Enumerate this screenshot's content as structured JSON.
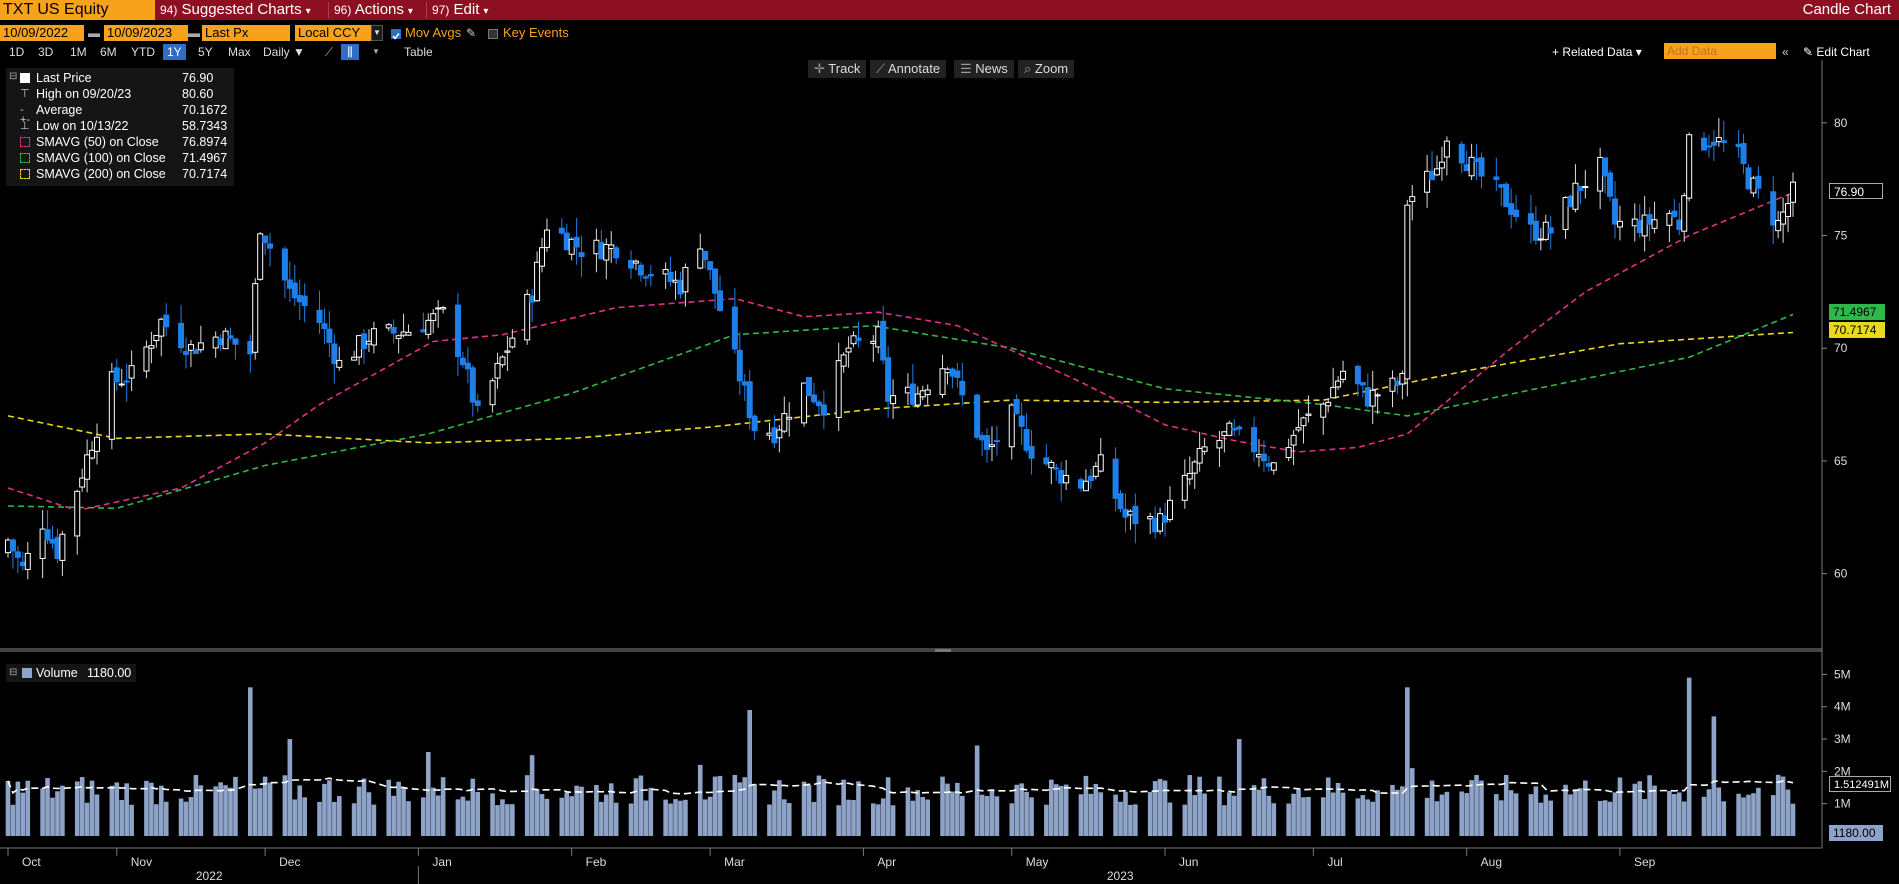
{
  "header": {
    "security": "TXT US Equity",
    "menus": [
      {
        "num": "94)",
        "label": "Suggested Charts"
      },
      {
        "num": "96)",
        "label": "Actions"
      },
      {
        "num": "97)",
        "label": "Edit"
      }
    ],
    "view_title": "Candle Chart"
  },
  "controls": {
    "start_date": "10/09/2022",
    "end_date": "10/09/2023",
    "field": "Last Px",
    "currency": "Local CCY",
    "mov_avgs": "Mov Avgs",
    "key_events": "Key Events",
    "periods": [
      "1D",
      "3D",
      "1M",
      "6M",
      "YTD",
      "1Y",
      "5Y",
      "Max"
    ],
    "selected_period": "1Y",
    "frequency": "Daily",
    "table": "Table",
    "related_data": "+ Related Data",
    "add_data_placeholder": "Add Data",
    "edit_chart": "Edit Chart",
    "tools": [
      "Track",
      "Annotate",
      "News",
      "Zoom"
    ]
  },
  "legend": [
    {
      "label": "Last Price",
      "value": "76.90",
      "color": "#ffffff"
    },
    {
      "label": "High on 09/20/23",
      "value": "80.60",
      "color": "#cccccc"
    },
    {
      "label": "Average",
      "value": "70.1672",
      "color": "#cccccc"
    },
    {
      "label": "Low on 10/13/22",
      "value": "58.7343",
      "color": "#cccccc"
    },
    {
      "label": "SMAVG (50)  on Close",
      "value": "76.8974",
      "color": "#e0308a"
    },
    {
      "label": "SMAVG (100)  on Close",
      "value": "71.4967",
      "color": "#2fb84a"
    },
    {
      "label": "SMAVG (200)  on Close",
      "value": "70.7174",
      "color": "#e8d81e"
    }
  ],
  "volume_legend": {
    "label": "Volume",
    "value": "1180.00"
  },
  "price_tags": {
    "last": "76.90",
    "sma100": "71.4967",
    "sma200": "70.7174",
    "vol_ma": "1.512491M",
    "vol_last": "1180.00"
  },
  "chart_data": {
    "type": "candlestick",
    "title": "",
    "price_axis": {
      "ticks": [
        60,
        65,
        70,
        75,
        80
      ],
      "ylim": [
        56.7,
        82.7
      ]
    },
    "volume_axis": {
      "ticks": [
        "1M",
        "2M",
        "3M",
        "4M",
        "5M"
      ],
      "tick_values": [
        1,
        2,
        3,
        4,
        5
      ],
      "unit": "M"
    },
    "x_labels": {
      "months": [
        "Oct",
        "Nov",
        "Dec",
        "Jan",
        "Feb",
        "Mar",
        "Apr",
        "May",
        "Jun",
        "Jul",
        "Aug",
        "Sep"
      ],
      "years": [
        "2022",
        "2023"
      ]
    },
    "close_anchors": [
      {
        "date": "2022-10-10",
        "value": 61.5
      },
      {
        "date": "2022-10-13",
        "value": 60.2
      },
      {
        "date": "2022-10-17",
        "value": 62.3
      },
      {
        "date": "2022-10-20",
        "value": 61.0
      },
      {
        "date": "2022-10-25",
        "value": 64.5
      },
      {
        "date": "2022-10-31",
        "value": 68.5
      },
      {
        "date": "2022-11-04",
        "value": 68.8
      },
      {
        "date": "2022-11-10",
        "value": 71.2
      },
      {
        "date": "2022-11-16",
        "value": 70.0
      },
      {
        "date": "2022-11-22",
        "value": 70.6
      },
      {
        "date": "2022-11-28",
        "value": 69.8
      },
      {
        "date": "2022-11-30",
        "value": 75.5
      },
      {
        "date": "2022-12-06",
        "value": 72.5
      },
      {
        "date": "2022-12-12",
        "value": 71.2
      },
      {
        "date": "2022-12-16",
        "value": 69.3
      },
      {
        "date": "2022-12-22",
        "value": 70.5
      },
      {
        "date": "2022-12-30",
        "value": 70.8
      },
      {
        "date": "2023-01-06",
        "value": 71.5
      },
      {
        "date": "2023-01-10",
        "value": 69.5
      },
      {
        "date": "2023-01-13",
        "value": 67.0
      },
      {
        "date": "2023-01-19",
        "value": 70.0
      },
      {
        "date": "2023-01-24",
        "value": 72.5
      },
      {
        "date": "2023-01-27",
        "value": 75.5
      },
      {
        "date": "2023-02-03",
        "value": 74.4
      },
      {
        "date": "2023-02-10",
        "value": 74.5
      },
      {
        "date": "2023-02-16",
        "value": 73.5
      },
      {
        "date": "2023-02-23",
        "value": 72.8
      },
      {
        "date": "2023-02-27",
        "value": 74.8
      },
      {
        "date": "2023-03-02",
        "value": 72.5
      },
      {
        "date": "2023-03-06",
        "value": 69.5
      },
      {
        "date": "2023-03-10",
        "value": 66.5
      },
      {
        "date": "2023-03-14",
        "value": 66.3
      },
      {
        "date": "2023-03-20",
        "value": 68.3
      },
      {
        "date": "2023-03-24",
        "value": 67.5
      },
      {
        "date": "2023-03-29",
        "value": 70.0
      },
      {
        "date": "2023-04-04",
        "value": 70.5
      },
      {
        "date": "2023-04-06",
        "value": 67.8
      },
      {
        "date": "2023-04-12",
        "value": 68.0
      },
      {
        "date": "2023-04-18",
        "value": 69.5
      },
      {
        "date": "2023-04-21",
        "value": 67.8
      },
      {
        "date": "2023-04-26",
        "value": 65.3
      },
      {
        "date": "2023-05-01",
        "value": 67.0
      },
      {
        "date": "2023-05-05",
        "value": 65.5
      },
      {
        "date": "2023-05-10",
        "value": 64.5
      },
      {
        "date": "2023-05-15",
        "value": 64.0
      },
      {
        "date": "2023-05-19",
        "value": 64.8
      },
      {
        "date": "2023-05-24",
        "value": 62.5
      },
      {
        "date": "2023-05-31",
        "value": 62.3
      },
      {
        "date": "2023-06-05",
        "value": 64.0
      },
      {
        "date": "2023-06-09",
        "value": 65.5
      },
      {
        "date": "2023-06-14",
        "value": 66.2
      },
      {
        "date": "2023-06-20",
        "value": 65.5
      },
      {
        "date": "2023-06-23",
        "value": 64.8
      },
      {
        "date": "2023-06-28",
        "value": 66.5
      },
      {
        "date": "2023-07-03",
        "value": 67.5
      },
      {
        "date": "2023-07-07",
        "value": 69.0
      },
      {
        "date": "2023-07-12",
        "value": 67.8
      },
      {
        "date": "2023-07-17",
        "value": 68.3
      },
      {
        "date": "2023-07-19",
        "value": 68.5
      },
      {
        "date": "2023-07-20",
        "value": 76.5
      },
      {
        "date": "2023-07-26",
        "value": 78.0
      },
      {
        "date": "2023-07-28",
        "value": 79.5
      },
      {
        "date": "2023-08-03",
        "value": 77.8
      },
      {
        "date": "2023-08-08",
        "value": 76.8
      },
      {
        "date": "2023-08-14",
        "value": 75.2
      },
      {
        "date": "2023-08-18",
        "value": 75.2
      },
      {
        "date": "2023-08-23",
        "value": 77.0
      },
      {
        "date": "2023-08-28",
        "value": 78.0
      },
      {
        "date": "2023-08-31",
        "value": 75.5
      },
      {
        "date": "2023-09-06",
        "value": 75.5
      },
      {
        "date": "2023-09-11",
        "value": 76.0
      },
      {
        "date": "2023-09-13",
        "value": 75.5
      },
      {
        "date": "2023-09-15",
        "value": 79.0
      },
      {
        "date": "2023-09-20",
        "value": 79.3
      },
      {
        "date": "2023-09-25",
        "value": 78.5
      },
      {
        "date": "2023-09-27",
        "value": 77.5
      },
      {
        "date": "2023-10-03",
        "value": 75.5
      },
      {
        "date": "2023-10-06",
        "value": 76.9
      }
    ],
    "sma50_anchors": [
      {
        "date": "2022-10-10",
        "value": 63.8
      },
      {
        "date": "2022-10-24",
        "value": 62.8
      },
      {
        "date": "2022-11-14",
        "value": 63.8
      },
      {
        "date": "2022-12-01",
        "value": 65.8
      },
      {
        "date": "2022-12-12",
        "value": 67.5
      },
      {
        "date": "2023-01-04",
        "value": 70.3
      },
      {
        "date": "2023-01-18",
        "value": 70.6
      },
      {
        "date": "2023-02-10",
        "value": 71.8
      },
      {
        "date": "2023-03-06",
        "value": 72.2
      },
      {
        "date": "2023-03-20",
        "value": 71.4
      },
      {
        "date": "2023-04-04",
        "value": 71.6
      },
      {
        "date": "2023-04-20",
        "value": 71.0
      },
      {
        "date": "2023-05-15",
        "value": 68.5
      },
      {
        "date": "2023-06-01",
        "value": 66.6
      },
      {
        "date": "2023-06-15",
        "value": 65.9
      },
      {
        "date": "2023-06-28",
        "value": 65.4
      },
      {
        "date": "2023-07-10",
        "value": 65.6
      },
      {
        "date": "2023-07-20",
        "value": 66.2
      },
      {
        "date": "2023-08-10",
        "value": 70.0
      },
      {
        "date": "2023-08-25",
        "value": 72.5
      },
      {
        "date": "2023-09-15",
        "value": 75.0
      },
      {
        "date": "2023-10-06",
        "value": 76.9
      }
    ],
    "sma100_anchors": [
      {
        "date": "2022-10-10",
        "value": 63.0
      },
      {
        "date": "2022-11-01",
        "value": 62.9
      },
      {
        "date": "2022-12-01",
        "value": 64.8
      },
      {
        "date": "2023-01-03",
        "value": 66.2
      },
      {
        "date": "2023-02-01",
        "value": 68.0
      },
      {
        "date": "2023-03-06",
        "value": 70.6
      },
      {
        "date": "2023-04-03",
        "value": 71.0
      },
      {
        "date": "2023-05-01",
        "value": 70.0
      },
      {
        "date": "2023-06-01",
        "value": 68.2
      },
      {
        "date": "2023-07-03",
        "value": 67.5
      },
      {
        "date": "2023-07-20",
        "value": 67.0
      },
      {
        "date": "2023-08-15",
        "value": 68.2
      },
      {
        "date": "2023-09-15",
        "value": 69.6
      },
      {
        "date": "2023-10-06",
        "value": 71.5
      }
    ],
    "sma200_anchors": [
      {
        "date": "2022-10-10",
        "value": 67.0
      },
      {
        "date": "2022-11-01",
        "value": 66.0
      },
      {
        "date": "2022-12-01",
        "value": 66.2
      },
      {
        "date": "2023-01-03",
        "value": 65.8
      },
      {
        "date": "2023-02-01",
        "value": 66.0
      },
      {
        "date": "2023-03-01",
        "value": 66.5
      },
      {
        "date": "2023-04-03",
        "value": 67.3
      },
      {
        "date": "2023-05-01",
        "value": 67.7
      },
      {
        "date": "2023-06-01",
        "value": 67.6
      },
      {
        "date": "2023-07-03",
        "value": 67.7
      },
      {
        "date": "2023-08-01",
        "value": 69.0
      },
      {
        "date": "2023-09-01",
        "value": 70.2
      },
      {
        "date": "2023-10-06",
        "value": 70.7
      }
    ],
    "volume_spikes_M": [
      {
        "date": "2022-11-28",
        "value": 4.6
      },
      {
        "date": "2022-12-06",
        "value": 3.0
      },
      {
        "date": "2023-01-03",
        "value": 2.6
      },
      {
        "date": "2023-01-24",
        "value": 2.5
      },
      {
        "date": "2023-02-27",
        "value": 2.2
      },
      {
        "date": "2023-03-09",
        "value": 3.9
      },
      {
        "date": "2023-04-24",
        "value": 2.8
      },
      {
        "date": "2023-06-16",
        "value": 3.0
      },
      {
        "date": "2023-07-20",
        "value": 4.6
      },
      {
        "date": "2023-07-21",
        "value": 2.1
      },
      {
        "date": "2023-09-15",
        "value": 4.9
      },
      {
        "date": "2023-09-20",
        "value": 3.7
      }
    ],
    "volume_ma_M": 1.512491,
    "last_volume": 1180.0
  }
}
